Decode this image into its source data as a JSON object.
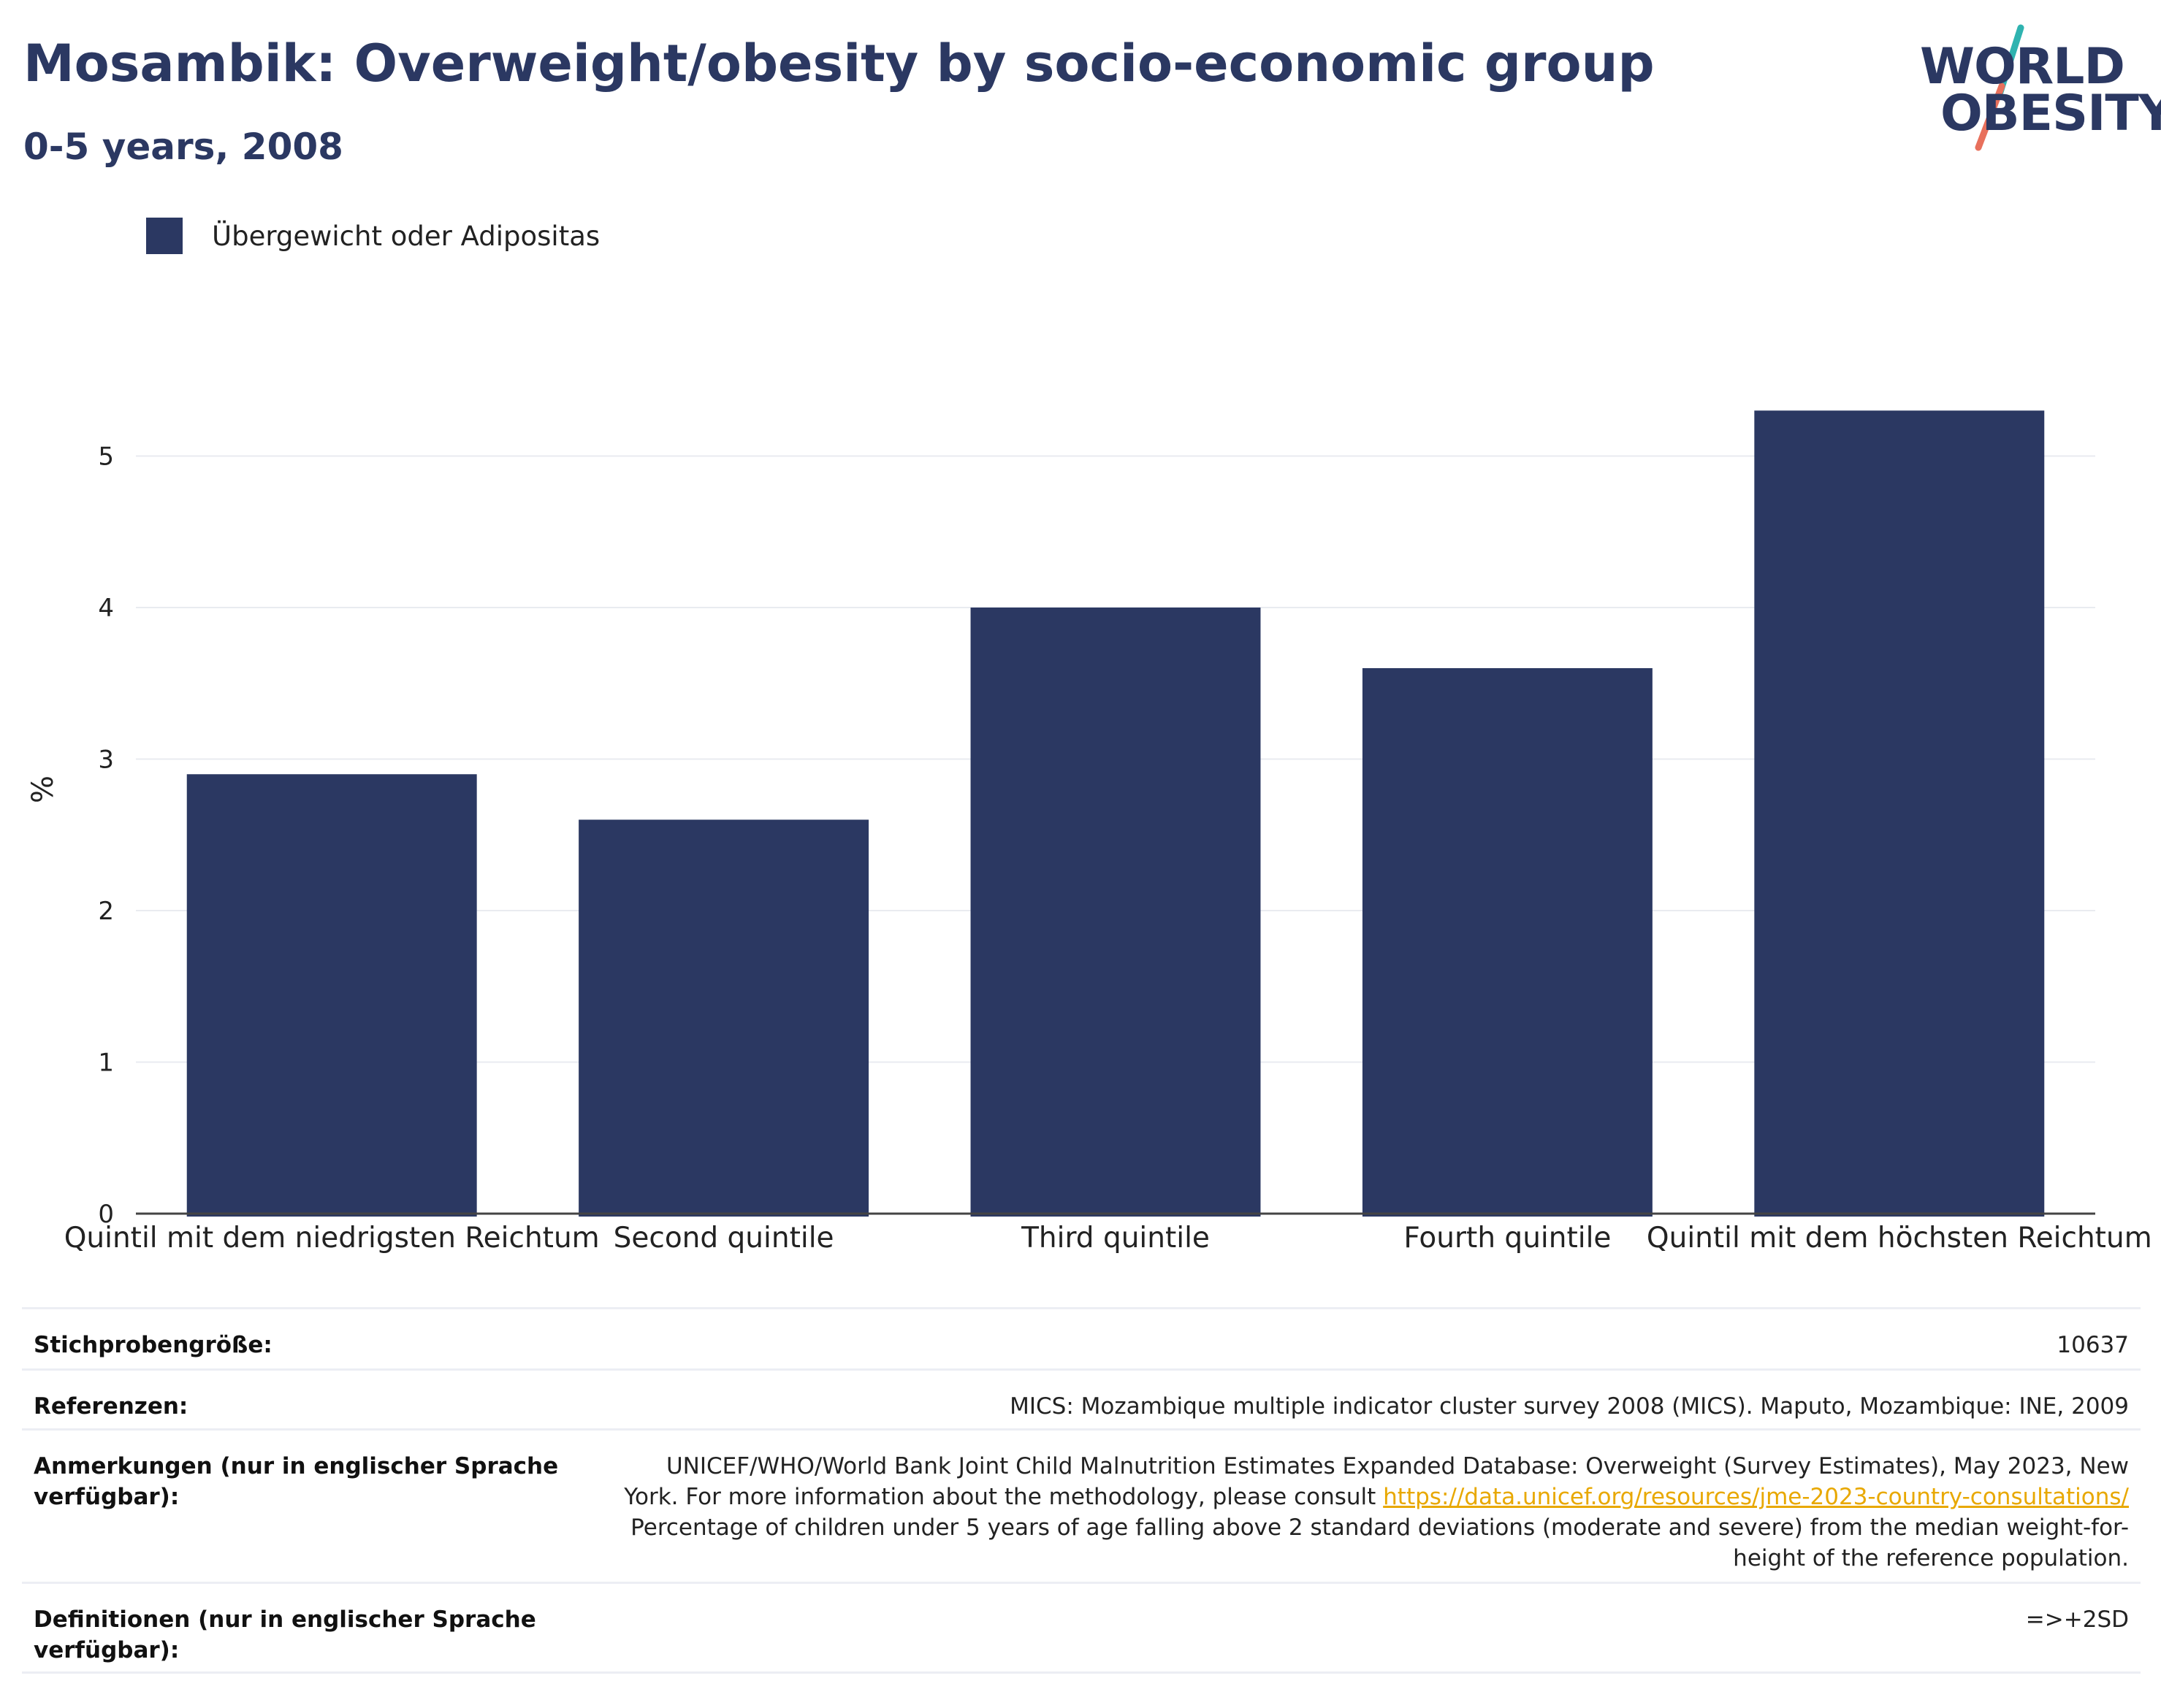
{
  "header": {
    "title": "Mosambik: Overweight/obesity by socio-economic group",
    "subtitle": "0-5 years, 2008"
  },
  "logo": {
    "line1": "WORLD",
    "line2": "OBESITY",
    "accent_teal": "#2fb3b0",
    "accent_coral": "#e8705c"
  },
  "colors": {
    "bar": "#2b3862",
    "title": "#2b3862",
    "grid": "#e9ebf0",
    "axis": "#444444"
  },
  "chart_data": {
    "type": "bar",
    "title": "Mosambik: Overweight/obesity by socio-economic group",
    "subtitle": "0-5 years, 2008",
    "xlabel": "",
    "ylabel": "%",
    "ylim": [
      0,
      5.6
    ],
    "yticks": [
      0,
      1,
      2,
      3,
      4,
      5
    ],
    "grid": true,
    "legend_position": "top-left",
    "categories": [
      "Quintil mit dem niedrigsten Reichtum",
      "Second quintile",
      "Third quintile",
      "Fourth quintile",
      "Quintil mit dem höchsten Reichtum"
    ],
    "series": [
      {
        "name": "Übergewicht oder Adipositas",
        "values": [
          2.9,
          2.6,
          4.0,
          3.6,
          5.3
        ]
      }
    ]
  },
  "info": {
    "sample_size": {
      "label": "Stichprobengröße:",
      "value": "10637"
    },
    "references": {
      "label": "Referenzen:",
      "value": "MICS: Mozambique multiple indicator cluster survey 2008 (MICS). Maputo, Mozambique: INE, 2009"
    },
    "notes": {
      "label": "Anmerkungen (nur in englischer Sprache verfügbar):",
      "text_before": "UNICEF/WHO/World Bank Joint Child Malnutrition Estimates Expanded Database: Overweight (Survey Estimates), May 2023, New York. For more information about the methodology, please consult ",
      "link": "https://data.unicef.org/resources/jme-2023-country-consultations/",
      "text_after": " Percentage of children under 5 years of age falling above 2 standard deviations (moderate and severe) from the median weight-for-height of the reference population."
    },
    "definitions": {
      "label": "Definitionen (nur in englischer Sprache verfügbar):",
      "value": "=>+2SD"
    }
  }
}
